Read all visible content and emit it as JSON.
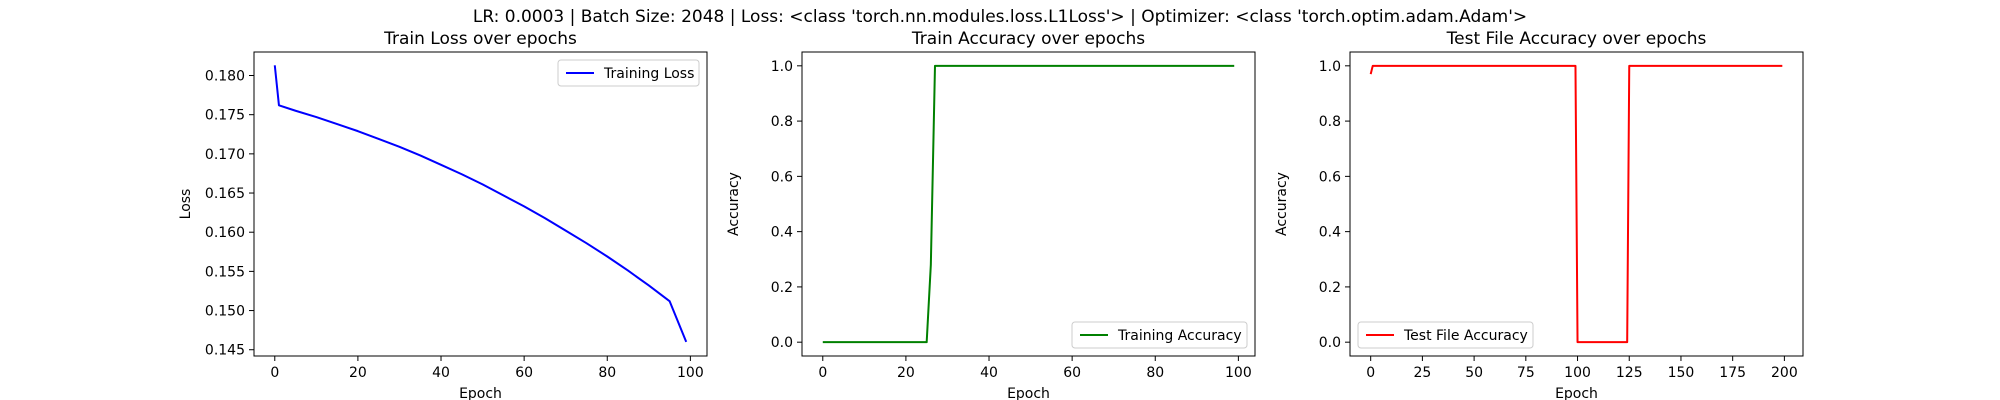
{
  "figure": {
    "suptitle": "LR: 0.0003 | Batch Size: 2048 | Loss: <class 'torch.nn.modules.loss.L1Loss'> | Optimizer: <class 'torch.optim.adam.Adam'>"
  },
  "chart_data": [
    {
      "type": "line",
      "title": "Train Loss over epochs",
      "xlabel": "Epoch",
      "ylabel": "Loss",
      "xlim": [
        -5,
        104
      ],
      "ylim": [
        0.1442,
        0.183
      ],
      "xticks": [
        0,
        20,
        40,
        60,
        80,
        100
      ],
      "yticks": [
        0.145,
        0.15,
        0.155,
        0.16,
        0.165,
        0.17,
        0.175,
        0.18
      ],
      "grid": false,
      "legend": "upper right",
      "series": [
        {
          "name": "Training Loss",
          "color": "#0000ff",
          "x": [
            0,
            1,
            5,
            10,
            15,
            20,
            25,
            30,
            35,
            40,
            45,
            50,
            55,
            60,
            65,
            70,
            75,
            80,
            85,
            90,
            95,
            99
          ],
          "y": [
            0.1813,
            0.1762,
            0.1755,
            0.1747,
            0.1738,
            0.1729,
            0.1719,
            0.1709,
            0.1698,
            0.1686,
            0.1674,
            0.1661,
            0.1647,
            0.1633,
            0.1618,
            0.1602,
            0.1586,
            0.1569,
            0.1551,
            0.1532,
            0.1512,
            0.146
          ]
        }
      ]
    },
    {
      "type": "line",
      "title": "Train Accuracy over epochs",
      "xlabel": "Epoch",
      "ylabel": "Accuracy",
      "xlim": [
        -5,
        104
      ],
      "ylim": [
        -0.05,
        1.05
      ],
      "xticks": [
        0,
        20,
        40,
        60,
        80,
        100
      ],
      "yticks": [
        0.0,
        0.2,
        0.4,
        0.6,
        0.8,
        1.0
      ],
      "grid": false,
      "legend": "lower right",
      "series": [
        {
          "name": "Training Accuracy",
          "color": "#008000",
          "x": [
            0,
            25,
            26,
            27,
            99
          ],
          "y": [
            0.0,
            0.0,
            0.28,
            1.0,
            1.0
          ]
        }
      ]
    },
    {
      "type": "line",
      "title": "Test File Accuracy over epochs",
      "xlabel": "Epoch",
      "ylabel": "Accuracy",
      "xlim": [
        -10,
        209
      ],
      "ylim": [
        -0.05,
        1.05
      ],
      "xticks": [
        0,
        25,
        50,
        75,
        100,
        125,
        150,
        175,
        200
      ],
      "yticks": [
        0.0,
        0.2,
        0.4,
        0.6,
        0.8,
        1.0
      ],
      "grid": false,
      "legend": "lower left",
      "series": [
        {
          "name": "Test File Accuracy",
          "color": "#ff0000",
          "x": [
            0,
            1,
            2,
            99,
            100,
            124,
            125,
            199
          ],
          "y": [
            0.97,
            1.0,
            1.0,
            1.0,
            0.0,
            0.0,
            1.0,
            1.0
          ]
        }
      ]
    }
  ]
}
